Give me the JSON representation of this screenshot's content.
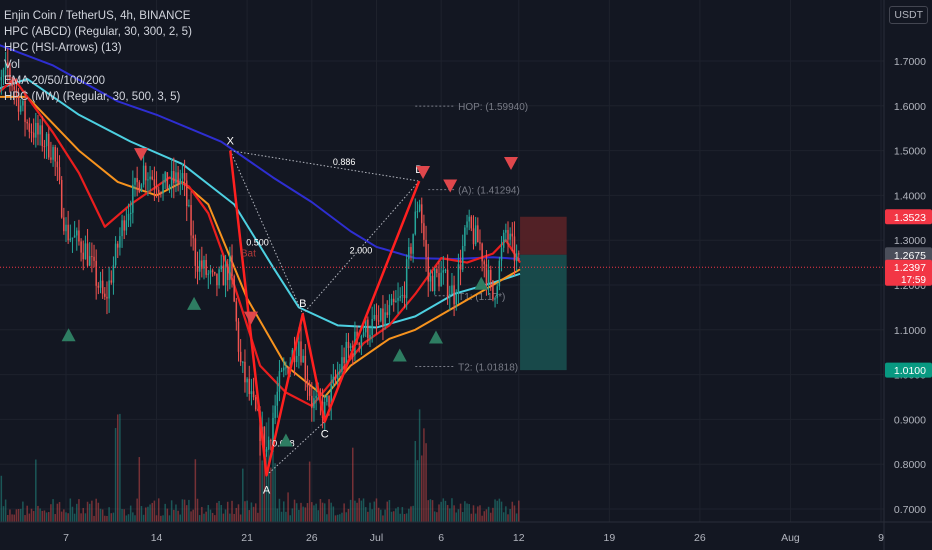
{
  "legend": {
    "symbol": "Enjin Coin / TetherUS, 4h, BINANCE",
    "ind1": "HPC (ABCD) (Regular, 30, 300, 2, 5)",
    "ind2": "HPC (HSI-Arrows) (13)",
    "ind3": "Vol",
    "ind4": "EMA 20/50/100/200",
    "ind5": "HPC (MW) (Regular, 30, 500, 3, 5)"
  },
  "currency": "USDT",
  "colors": {
    "background": "#131722",
    "up": "#26a69a",
    "down": "#ef5350",
    "ema20": "#e91e1e",
    "ema50": "#f7931e",
    "ema100": "#4dd0e1",
    "ema200": "#2e2ed1",
    "pattern": "#ff2020",
    "target_zone": "#1a4f4f",
    "stop_zone": "#5a2227"
  },
  "chart_data": {
    "type": "candlestick",
    "y_axis": {
      "min": 0.665,
      "max": 1.825,
      "scale": "linear",
      "ticks": [
        "1.7000",
        "1.6000",
        "1.5000",
        "1.4000",
        "1.3000",
        "1.2000",
        "1.1000",
        "1.0000",
        "0.9000",
        "0.8000",
        "0.7000"
      ],
      "tick_values": [
        1.7,
        1.6,
        1.5,
        1.4,
        1.3,
        1.2,
        1.1,
        1.0,
        0.9,
        0.8,
        0.7
      ]
    },
    "x_axis": {
      "ticks": [
        "7",
        "14",
        "21",
        "26",
        "Jul",
        "6",
        "12",
        "19",
        "26",
        "Aug",
        "9"
      ],
      "tick_day_index": [
        6,
        13,
        20,
        25,
        30,
        35,
        41,
        48,
        55,
        62,
        69
      ],
      "day_range": [
        0,
        70
      ]
    },
    "price_labels": [
      {
        "text": "1.3523",
        "value": 1.3523,
        "color": "#f23645"
      },
      {
        "text": "1.2675",
        "value": 1.2675,
        "color": "#4a4e5a"
      },
      {
        "text": "1.2397",
        "value": 1.2397,
        "color": "#f23645",
        "sub": "17:59"
      },
      {
        "text": "1.0100",
        "value": 1.01,
        "color": "#089981"
      }
    ],
    "current_price": 1.2397,
    "pattern_name": "Bat",
    "pattern_points": [
      {
        "label": "X",
        "day": 18.7,
        "price": 1.5
      },
      {
        "label": "A",
        "day": 21.5,
        "price": 0.775
      },
      {
        "label": "B",
        "day": 24.3,
        "price": 1.135
      },
      {
        "label": "C",
        "day": 26.0,
        "price": 0.895
      },
      {
        "label": "D",
        "day": 33.3,
        "price": 1.432
      }
    ],
    "ratios": [
      {
        "text": "0.886",
        "day": 27.5,
        "price": 1.468
      },
      {
        "text": "0.500",
        "day": 20.8,
        "price": 1.288
      },
      {
        "text": "2.000",
        "day": 28.8,
        "price": 1.27
      },
      {
        "text": "0.618",
        "day": 22.8,
        "price": 0.84
      }
    ],
    "levels": [
      {
        "text": "HOP: (1.59940)",
        "value": 1.5994,
        "day_start": 33.0,
        "day_end": 36.0
      },
      {
        "text": "(A): (1.41294)",
        "value": 1.41294,
        "day_start": 34.0,
        "day_end": 36.0
      },
      {
        "text": "T1: (1.17*)",
        "value": 1.176,
        "day_start": 34.5,
        "day_end": 36.0
      },
      {
        "text": "T2: (1.01818)",
        "value": 1.01818,
        "day_start": 33.0,
        "day_end": 36.0
      }
    ],
    "position_box": {
      "day_start": 41.1,
      "day_end": 44.7,
      "stop": 1.3523,
      "entry": 1.2675,
      "target": 1.01
    },
    "down_arrows": [
      {
        "day": 11.8,
        "price": 1.49
      },
      {
        "day": 20.3,
        "price": 1.125
      },
      {
        "day": 33.6,
        "price": 1.45
      },
      {
        "day": 35.7,
        "price": 1.42
      },
      {
        "day": 40.4,
        "price": 1.47
      }
    ],
    "up_arrows": [
      {
        "day": 6.2,
        "price": 1.09
      },
      {
        "day": 15.9,
        "price": 1.16
      },
      {
        "day": 23.0,
        "price": 0.855
      },
      {
        "day": 31.8,
        "price": 1.045
      },
      {
        "day": 34.6,
        "price": 1.085
      },
      {
        "day": 38.1,
        "price": 1.205
      }
    ],
    "ema_series": [
      {
        "key": "ema200",
        "points": [
          [
            0,
            1.745
          ],
          [
            5,
            1.69
          ],
          [
            10,
            1.61
          ],
          [
            13,
            1.58
          ],
          [
            18,
            1.52
          ],
          [
            22,
            1.44
          ],
          [
            25,
            1.385
          ],
          [
            28,
            1.32
          ],
          [
            30,
            1.285
          ],
          [
            33,
            1.26
          ],
          [
            36,
            1.258
          ],
          [
            39,
            1.262
          ],
          [
            41.1,
            1.258
          ]
        ]
      },
      {
        "key": "ema100",
        "points": [
          [
            0,
            1.63
          ],
          [
            3,
            1.66
          ],
          [
            7,
            1.58
          ],
          [
            11,
            1.52
          ],
          [
            15,
            1.47
          ],
          [
            19,
            1.38
          ],
          [
            22,
            1.24
          ],
          [
            24,
            1.15
          ],
          [
            27,
            1.11
          ],
          [
            30,
            1.105
          ],
          [
            33,
            1.13
          ],
          [
            36,
            1.18
          ],
          [
            39,
            1.205
          ],
          [
            41.1,
            1.225
          ]
        ]
      },
      {
        "key": "ema50",
        "points": [
          [
            0,
            1.62
          ],
          [
            3,
            1.62
          ],
          [
            7,
            1.5
          ],
          [
            10,
            1.43
          ],
          [
            13,
            1.4
          ],
          [
            15,
            1.43
          ],
          [
            17,
            1.38
          ],
          [
            20,
            1.17
          ],
          [
            23,
            1.02
          ],
          [
            26,
            0.95
          ],
          [
            28,
            1.02
          ],
          [
            31,
            1.08
          ],
          [
            33,
            1.1
          ],
          [
            36,
            1.15
          ],
          [
            39,
            1.2
          ],
          [
            41.1,
            1.235
          ]
        ]
      },
      {
        "key": "ema20",
        "points": [
          [
            0,
            1.61
          ],
          [
            2,
            1.66
          ],
          [
            5,
            1.54
          ],
          [
            7,
            1.45
          ],
          [
            9,
            1.33
          ],
          [
            11,
            1.38
          ],
          [
            14,
            1.44
          ],
          [
            15.5,
            1.42
          ],
          [
            17,
            1.36
          ],
          [
            19,
            1.2
          ],
          [
            21,
            1.02
          ],
          [
            23,
            0.96
          ],
          [
            25,
            0.93
          ],
          [
            27,
            1.0
          ],
          [
            29,
            1.07
          ],
          [
            31,
            1.11
          ],
          [
            33,
            1.18
          ],
          [
            35,
            1.26
          ],
          [
            37,
            1.25
          ],
          [
            39,
            1.27
          ],
          [
            40,
            1.3
          ],
          [
            41.1,
            1.25
          ]
        ]
      }
    ],
    "candle_path": [
      [
        0,
        1.6
      ],
      [
        1.5,
        1.68
      ],
      [
        3,
        1.56
      ],
      [
        5,
        1.5
      ],
      [
        6,
        1.32
      ],
      [
        7.5,
        1.28
      ],
      [
        9,
        1.16
      ],
      [
        10.5,
        1.35
      ],
      [
        12,
        1.46
      ],
      [
        13.5,
        1.42
      ],
      [
        15,
        1.44
      ],
      [
        16,
        1.26
      ],
      [
        17.5,
        1.2
      ],
      [
        18.7,
        1.24
      ],
      [
        19.5,
        1.02
      ],
      [
        21.5,
        0.83
      ],
      [
        22.5,
        0.98
      ],
      [
        24,
        1.08
      ],
      [
        25,
        0.94
      ],
      [
        26,
        0.92
      ],
      [
        27.5,
        1.04
      ],
      [
        29,
        1.1
      ],
      [
        30.5,
        1.12
      ],
      [
        32,
        1.17
      ],
      [
        33.3,
        1.4
      ],
      [
        34,
        1.21
      ],
      [
        35,
        1.22
      ],
      [
        36,
        1.18
      ],
      [
        37,
        1.33
      ],
      [
        38,
        1.29
      ],
      [
        39,
        1.17
      ],
      [
        40,
        1.32
      ],
      [
        40.5,
        1.28
      ],
      [
        41.1,
        1.24
      ]
    ],
    "candle_last_day": 41.1,
    "volume": {
      "note": "bars along bottom"
    }
  }
}
